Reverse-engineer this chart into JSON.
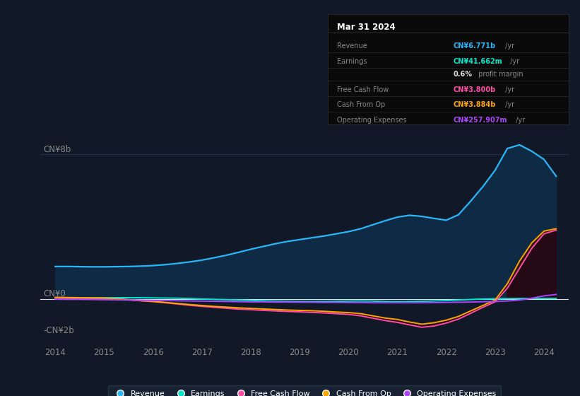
{
  "background_color": "#111827",
  "plot_bg_color": "#111827",
  "rev_color": "#29b6f6",
  "earn_color": "#00e5cc",
  "fcf_color": "#ff4da6",
  "cop_color": "#ffa500",
  "opex_color": "#aa44ff",
  "rev_fill": "#0a2a4a",
  "ylabel_top": "CN¥8b",
  "ylabel_zero": "CN¥0",
  "ylabel_neg": "-CN¥2b",
  "xticks": [
    2014,
    2015,
    2016,
    2017,
    2018,
    2019,
    2020,
    2021,
    2022,
    2023,
    2024
  ],
  "xlim": [
    2013.7,
    2024.5
  ],
  "ylim": [
    -2500000000.0,
    9500000000.0
  ],
  "tooltip_date": "Mar 31 2024",
  "tooltip_rows": [
    {
      "label": "Revenue",
      "value": "CN¥6.771b",
      "unit": " /yr",
      "color": "#29b6f6"
    },
    {
      "label": "Earnings",
      "value": "CN¥41.662m",
      "unit": " /yr",
      "color": "#00e5cc"
    },
    {
      "label": "",
      "value": "0.6%",
      "unit": " profit margin",
      "color": "#dddddd"
    },
    {
      "label": "Free Cash Flow",
      "value": "CN¥3.800b",
      "unit": " /yr",
      "color": "#ff4da6"
    },
    {
      "label": "Cash From Op",
      "value": "CN¥3.884b",
      "unit": " /yr",
      "color": "#ffa500"
    },
    {
      "label": "Operating Expenses",
      "value": "CN¥257.907m",
      "unit": " /yr",
      "color": "#aa44ff"
    }
  ],
  "legend_items": [
    {
      "label": "Revenue",
      "color": "#29b6f6"
    },
    {
      "label": "Earnings",
      "color": "#00e5cc"
    },
    {
      "label": "Free Cash Flow",
      "color": "#ff4da6"
    },
    {
      "label": "Cash From Op",
      "color": "#ffa500"
    },
    {
      "label": "Operating Expenses",
      "color": "#aa44ff"
    }
  ]
}
